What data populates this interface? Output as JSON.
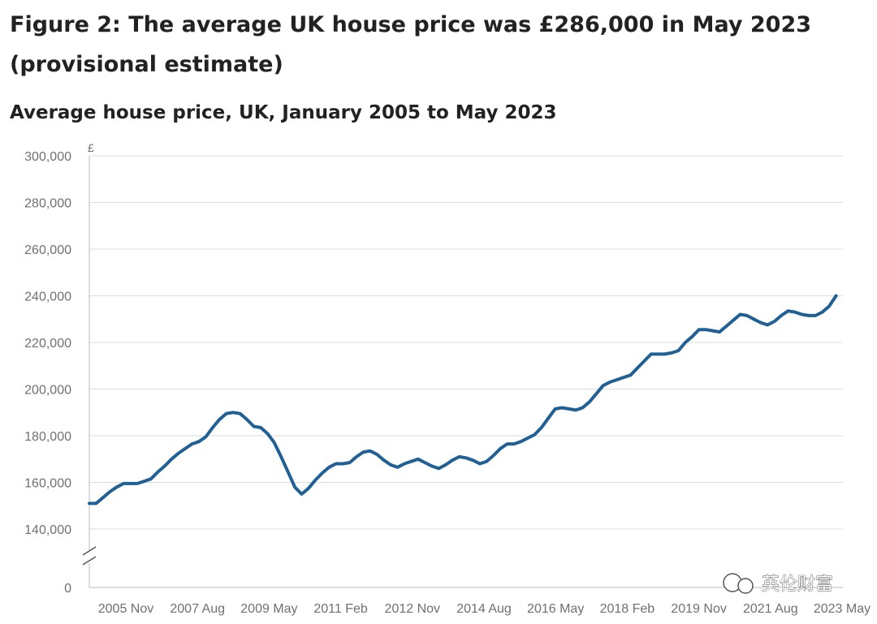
{
  "figure_title": "Figure 2: The average UK house price was £286,000 in May 2023 (provisional estimate)",
  "watermark": "英伦财富",
  "colors": {
    "line": "#206095",
    "grid": "#dddddd",
    "axis": "#bbbbbb",
    "text": "#707071"
  },
  "chart_data": {
    "type": "line",
    "title": "Average house price, UK, January 2005 to May 2023",
    "y_unit": "£",
    "ylim": [
      140000,
      300000
    ],
    "y_ticks": [
      300000,
      280000,
      260000,
      240000,
      220000,
      200000,
      180000,
      160000,
      140000
    ],
    "y_tick_labels": [
      "300,000",
      "280,000",
      "260,000",
      "240,000",
      "220,000",
      "200,000",
      "180,000",
      "160,000",
      "140,000"
    ],
    "y_zero_label": "0",
    "y_axis_break": true,
    "grid": true,
    "x_tick_labels": [
      "2005 Nov",
      "2007 Aug",
      "2009 May",
      "2011 Feb",
      "2012 Nov",
      "2014 Aug",
      "2016 May",
      "2018 Feb",
      "2019 Nov",
      "2021 Aug",
      "2023 May"
    ],
    "x_start": "2005-01",
    "x_end": "2023-05",
    "series": [
      {
        "name": "",
        "points": [
          [
            "2005-01",
            151000
          ],
          [
            "2005-03",
            151000
          ],
          [
            "2005-05",
            153500
          ],
          [
            "2005-07",
            156000
          ],
          [
            "2005-09",
            158000
          ],
          [
            "2005-11",
            159500
          ],
          [
            "2006-01",
            159500
          ],
          [
            "2006-03",
            159500
          ],
          [
            "2006-05",
            160500
          ],
          [
            "2006-07",
            161500
          ],
          [
            "2006-09",
            164500
          ],
          [
            "2006-11",
            167000
          ],
          [
            "2007-01",
            170000
          ],
          [
            "2007-03",
            172500
          ],
          [
            "2007-05",
            174500
          ],
          [
            "2007-07",
            176500
          ],
          [
            "2007-09",
            177500
          ],
          [
            "2007-11",
            179500
          ],
          [
            "2008-01",
            183500
          ],
          [
            "2008-03",
            187000
          ],
          [
            "2008-05",
            189500
          ],
          [
            "2008-07",
            190000
          ],
          [
            "2008-09",
            189500
          ],
          [
            "2008-11",
            187000
          ],
          [
            "2009-01",
            184000
          ],
          [
            "2009-03",
            183500
          ],
          [
            "2009-05",
            181000
          ],
          [
            "2009-07",
            177000
          ],
          [
            "2009-09",
            171000
          ],
          [
            "2009-11",
            164500
          ],
          [
            "2010-01",
            158000
          ],
          [
            "2010-03",
            155000
          ],
          [
            "2010-05",
            157500
          ],
          [
            "2010-07",
            161000
          ],
          [
            "2010-09",
            164000
          ],
          [
            "2010-11",
            166500
          ],
          [
            "2011-01",
            168000
          ],
          [
            "2011-03",
            168000
          ],
          [
            "2011-05",
            168500
          ],
          [
            "2011-07",
            171000
          ],
          [
            "2011-09",
            173000
          ],
          [
            "2011-11",
            173500
          ],
          [
            "2012-01",
            172000
          ],
          [
            "2012-03",
            169500
          ],
          [
            "2012-05",
            167500
          ],
          [
            "2012-07",
            166500
          ],
          [
            "2012-09",
            168000
          ],
          [
            "2012-11",
            169000
          ],
          [
            "2013-01",
            170000
          ],
          [
            "2013-03",
            168500
          ],
          [
            "2013-05",
            167000
          ],
          [
            "2013-07",
            166000
          ],
          [
            "2013-09",
            167500
          ],
          [
            "2013-11",
            169500
          ],
          [
            "2014-01",
            171000
          ],
          [
            "2014-03",
            170500
          ],
          [
            "2014-05",
            169500
          ],
          [
            "2014-07",
            168000
          ],
          [
            "2014-09",
            169000
          ],
          [
            "2014-11",
            171500
          ],
          [
            "2015-01",
            174500
          ],
          [
            "2015-03",
            176500
          ],
          [
            "2015-05",
            176500
          ],
          [
            "2015-07",
            177500
          ],
          [
            "2015-09",
            179000
          ],
          [
            "2015-11",
            180500
          ],
          [
            "2016-01",
            183500
          ],
          [
            "2016-03",
            187500
          ],
          [
            "2016-05",
            191500
          ],
          [
            "2016-07",
            192000
          ],
          [
            "2016-09",
            191500
          ],
          [
            "2016-11",
            191000
          ],
          [
            "2017-01",
            192000
          ],
          [
            "2017-03",
            194500
          ],
          [
            "2017-05",
            198000
          ],
          [
            "2017-07",
            201500
          ],
          [
            "2017-09",
            203000
          ],
          [
            "2017-11",
            204000
          ],
          [
            "2018-01",
            205000
          ],
          [
            "2018-03",
            206000
          ],
          [
            "2018-05",
            209000
          ],
          [
            "2018-07",
            212000
          ],
          [
            "2018-09",
            215000
          ],
          [
            "2018-11",
            215000
          ],
          [
            "2019-01",
            215000
          ],
          [
            "2019-03",
            215500
          ],
          [
            "2019-05",
            216500
          ],
          [
            "2019-07",
            220000
          ],
          [
            "2019-09",
            222500
          ],
          [
            "2019-11",
            225500
          ],
          [
            "2020-01",
            225500
          ],
          [
            "2020-03",
            225000
          ],
          [
            "2020-05",
            224500
          ],
          [
            "2020-07",
            227000
          ],
          [
            "2020-09",
            229500
          ],
          [
            "2020-11",
            232000
          ],
          [
            "2021-01",
            231500
          ],
          [
            "2021-03",
            230000
          ],
          [
            "2021-05",
            228500
          ],
          [
            "2021-07",
            227500
          ],
          [
            "2021-09",
            229000
          ],
          [
            "2021-11",
            231500
          ],
          [
            "2022-01",
            233500
          ],
          [
            "2022-03",
            233000
          ],
          [
            "2022-05",
            232000
          ],
          [
            "2022-07",
            231500
          ],
          [
            "2022-09",
            231500
          ],
          [
            "2022-11",
            233000
          ],
          [
            "2023-01",
            235500
          ],
          [
            "2023-03",
            240000
          ]
        ]
      }
    ]
  }
}
